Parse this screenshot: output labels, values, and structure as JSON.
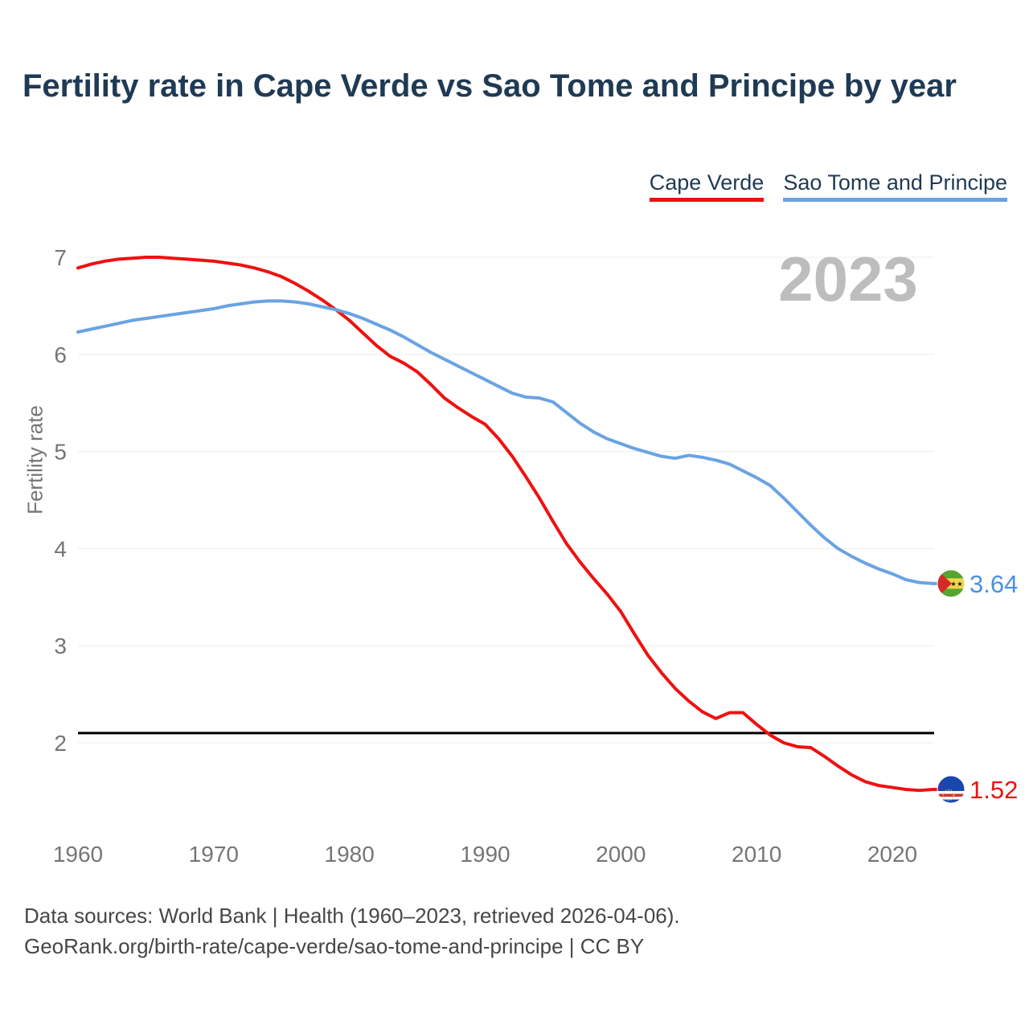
{
  "page": {
    "title": "Fertility rate in Cape Verde vs Sao Tome and Principe by year",
    "watermark_year": "2023",
    "footer_line1": "Data sources: World Bank | Health (1960–2023, retrieved 2026-04-06).",
    "footer_line2": "GeoRank.org/birth-rate/cape-verde/sao-tome-and-principe | CC BY"
  },
  "legend": [
    {
      "label": "Cape Verde",
      "color": "#ee1111"
    },
    {
      "label": "Sao Tome and Principe",
      "color": "#6aa3e3"
    }
  ],
  "chart_data": {
    "type": "line",
    "title": "Fertility rate in Cape Verde vs Sao Tome and Principe by year",
    "xlabel": "",
    "ylabel": "Fertility rate",
    "grid": true,
    "legend_position": "top-right",
    "ylim": [
      1.4,
      7.1
    ],
    "y_ticks": [
      7,
      6,
      5,
      4,
      3,
      2
    ],
    "x_ticks": [
      1960,
      1970,
      1980,
      1990,
      2000,
      2010,
      2020
    ],
    "reference_line": {
      "value": 2.1,
      "color": "#000000"
    },
    "x": [
      1960,
      1961,
      1962,
      1963,
      1964,
      1965,
      1966,
      1967,
      1968,
      1969,
      1970,
      1971,
      1972,
      1973,
      1974,
      1975,
      1976,
      1977,
      1978,
      1979,
      1980,
      1981,
      1982,
      1983,
      1984,
      1985,
      1986,
      1987,
      1988,
      1989,
      1990,
      1991,
      1992,
      1993,
      1994,
      1995,
      1996,
      1997,
      1998,
      1999,
      2000,
      2001,
      2002,
      2003,
      2004,
      2005,
      2006,
      2007,
      2008,
      2009,
      2010,
      2011,
      2012,
      2013,
      2014,
      2015,
      2016,
      2017,
      2018,
      2019,
      2020,
      2021,
      2022,
      2023
    ],
    "series": [
      {
        "id": "cape-verde",
        "name": "Cape Verde",
        "color": "#ee1111",
        "label_color": "#ee1111",
        "flag_id": "flag-cv",
        "end_label": "1.52",
        "values": [
          6.89,
          6.93,
          6.96,
          6.98,
          6.99,
          7.0,
          7.0,
          6.99,
          6.98,
          6.97,
          6.96,
          6.94,
          6.92,
          6.89,
          6.85,
          6.8,
          6.73,
          6.65,
          6.56,
          6.46,
          6.35,
          6.22,
          6.09,
          5.98,
          5.91,
          5.82,
          5.69,
          5.55,
          5.45,
          5.36,
          5.28,
          5.13,
          4.95,
          4.74,
          4.52,
          4.28,
          4.05,
          3.86,
          3.69,
          3.53,
          3.35,
          3.12,
          2.9,
          2.72,
          2.56,
          2.43,
          2.32,
          2.25,
          2.31,
          2.31,
          2.19,
          2.08,
          2.0,
          1.96,
          1.95,
          1.86,
          1.76,
          1.67,
          1.6,
          1.56,
          1.54,
          1.52,
          1.51,
          1.52
        ]
      },
      {
        "id": "sao-tome-and-principe",
        "name": "Sao Tome and Principe",
        "color": "#6aa3e3",
        "label_color": "#4a90e2",
        "flag_id": "flag-stp",
        "end_label": "3.64",
        "values": [
          6.23,
          6.26,
          6.29,
          6.32,
          6.35,
          6.37,
          6.39,
          6.41,
          6.43,
          6.45,
          6.47,
          6.5,
          6.52,
          6.54,
          6.55,
          6.55,
          6.54,
          6.52,
          6.49,
          6.46,
          6.42,
          6.37,
          6.31,
          6.25,
          6.18,
          6.1,
          6.02,
          5.95,
          5.88,
          5.81,
          5.74,
          5.67,
          5.6,
          5.56,
          5.55,
          5.51,
          5.4,
          5.29,
          5.2,
          5.13,
          5.08,
          5.03,
          4.99,
          4.95,
          4.93,
          4.96,
          4.94,
          4.91,
          4.87,
          4.8,
          4.73,
          4.65,
          4.52,
          4.38,
          4.24,
          4.11,
          4.0,
          3.92,
          3.85,
          3.79,
          3.74,
          3.68,
          3.65,
          3.64
        ]
      }
    ]
  }
}
